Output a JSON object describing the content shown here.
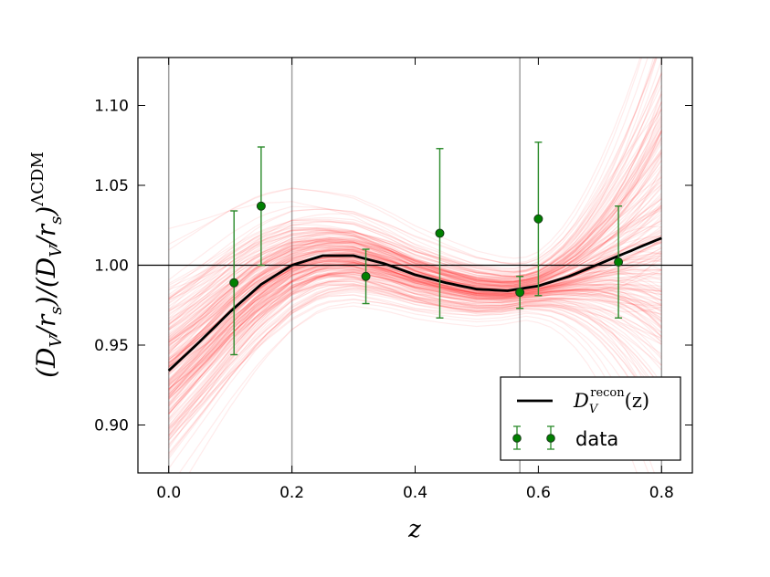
{
  "chart_data": {
    "type": "line",
    "title": "",
    "xlabel": "z",
    "ylabel": {
      "part1": "(D",
      "part1_sub": "V",
      "part2": "/r",
      "part2_sub": "s",
      "part3": ")/(D",
      "part3_sub": "V",
      "part4": "/r",
      "part4_sub": "s",
      "part5": ")",
      "sup": "ΛCDM"
    },
    "xlim": [
      -0.05,
      0.85
    ],
    "ylim": [
      0.87,
      1.13
    ],
    "x_ticks": [
      0.0,
      0.2,
      0.4,
      0.6,
      0.8
    ],
    "x_tick_labels": [
      "0.0",
      "0.2",
      "0.4",
      "0.6",
      "0.8"
    ],
    "y_ticks": [
      0.9,
      0.95,
      1.0,
      1.05,
      1.1
    ],
    "y_tick_labels": [
      "0.90",
      "0.95",
      "1.00",
      "1.05",
      "1.10"
    ],
    "reference_line_y": 1.0,
    "vertical_gridlines_x": [
      0.0,
      0.2,
      0.57,
      0.8
    ],
    "recon_curve": {
      "name": "D_V^recon(z)",
      "color": "#000000",
      "x": [
        0.0,
        0.05,
        0.1,
        0.15,
        0.2,
        0.25,
        0.3,
        0.35,
        0.4,
        0.45,
        0.5,
        0.55,
        0.6,
        0.65,
        0.7,
        0.75,
        0.8
      ],
      "y": [
        0.934,
        0.952,
        0.971,
        0.988,
        1.0,
        1.006,
        1.006,
        1.001,
        0.994,
        0.989,
        0.985,
        0.984,
        0.987,
        0.993,
        1.001,
        1.009,
        1.017
      ]
    },
    "realizations_color": "#ff2020",
    "data": {
      "name": "data",
      "color": "#008000",
      "edge_color": "#1a3a1a",
      "points": [
        {
          "x": 0.106,
          "y": 0.989,
          "err": 0.045
        },
        {
          "x": 0.15,
          "y": 1.037,
          "err": 0.037
        },
        {
          "x": 0.32,
          "y": 0.993,
          "err": 0.017
        },
        {
          "x": 0.44,
          "y": 1.02,
          "err": 0.053
        },
        {
          "x": 0.57,
          "y": 0.983,
          "err": 0.01
        },
        {
          "x": 0.6,
          "y": 1.029,
          "err": 0.048
        },
        {
          "x": 0.73,
          "y": 1.002,
          "err": 0.035
        }
      ]
    },
    "legend": {
      "position": "lower-right",
      "recon_label_base": "D",
      "recon_label_sub": "V",
      "recon_label_sup": "recon",
      "recon_label_arg": "(z)",
      "data_label": "data"
    }
  }
}
